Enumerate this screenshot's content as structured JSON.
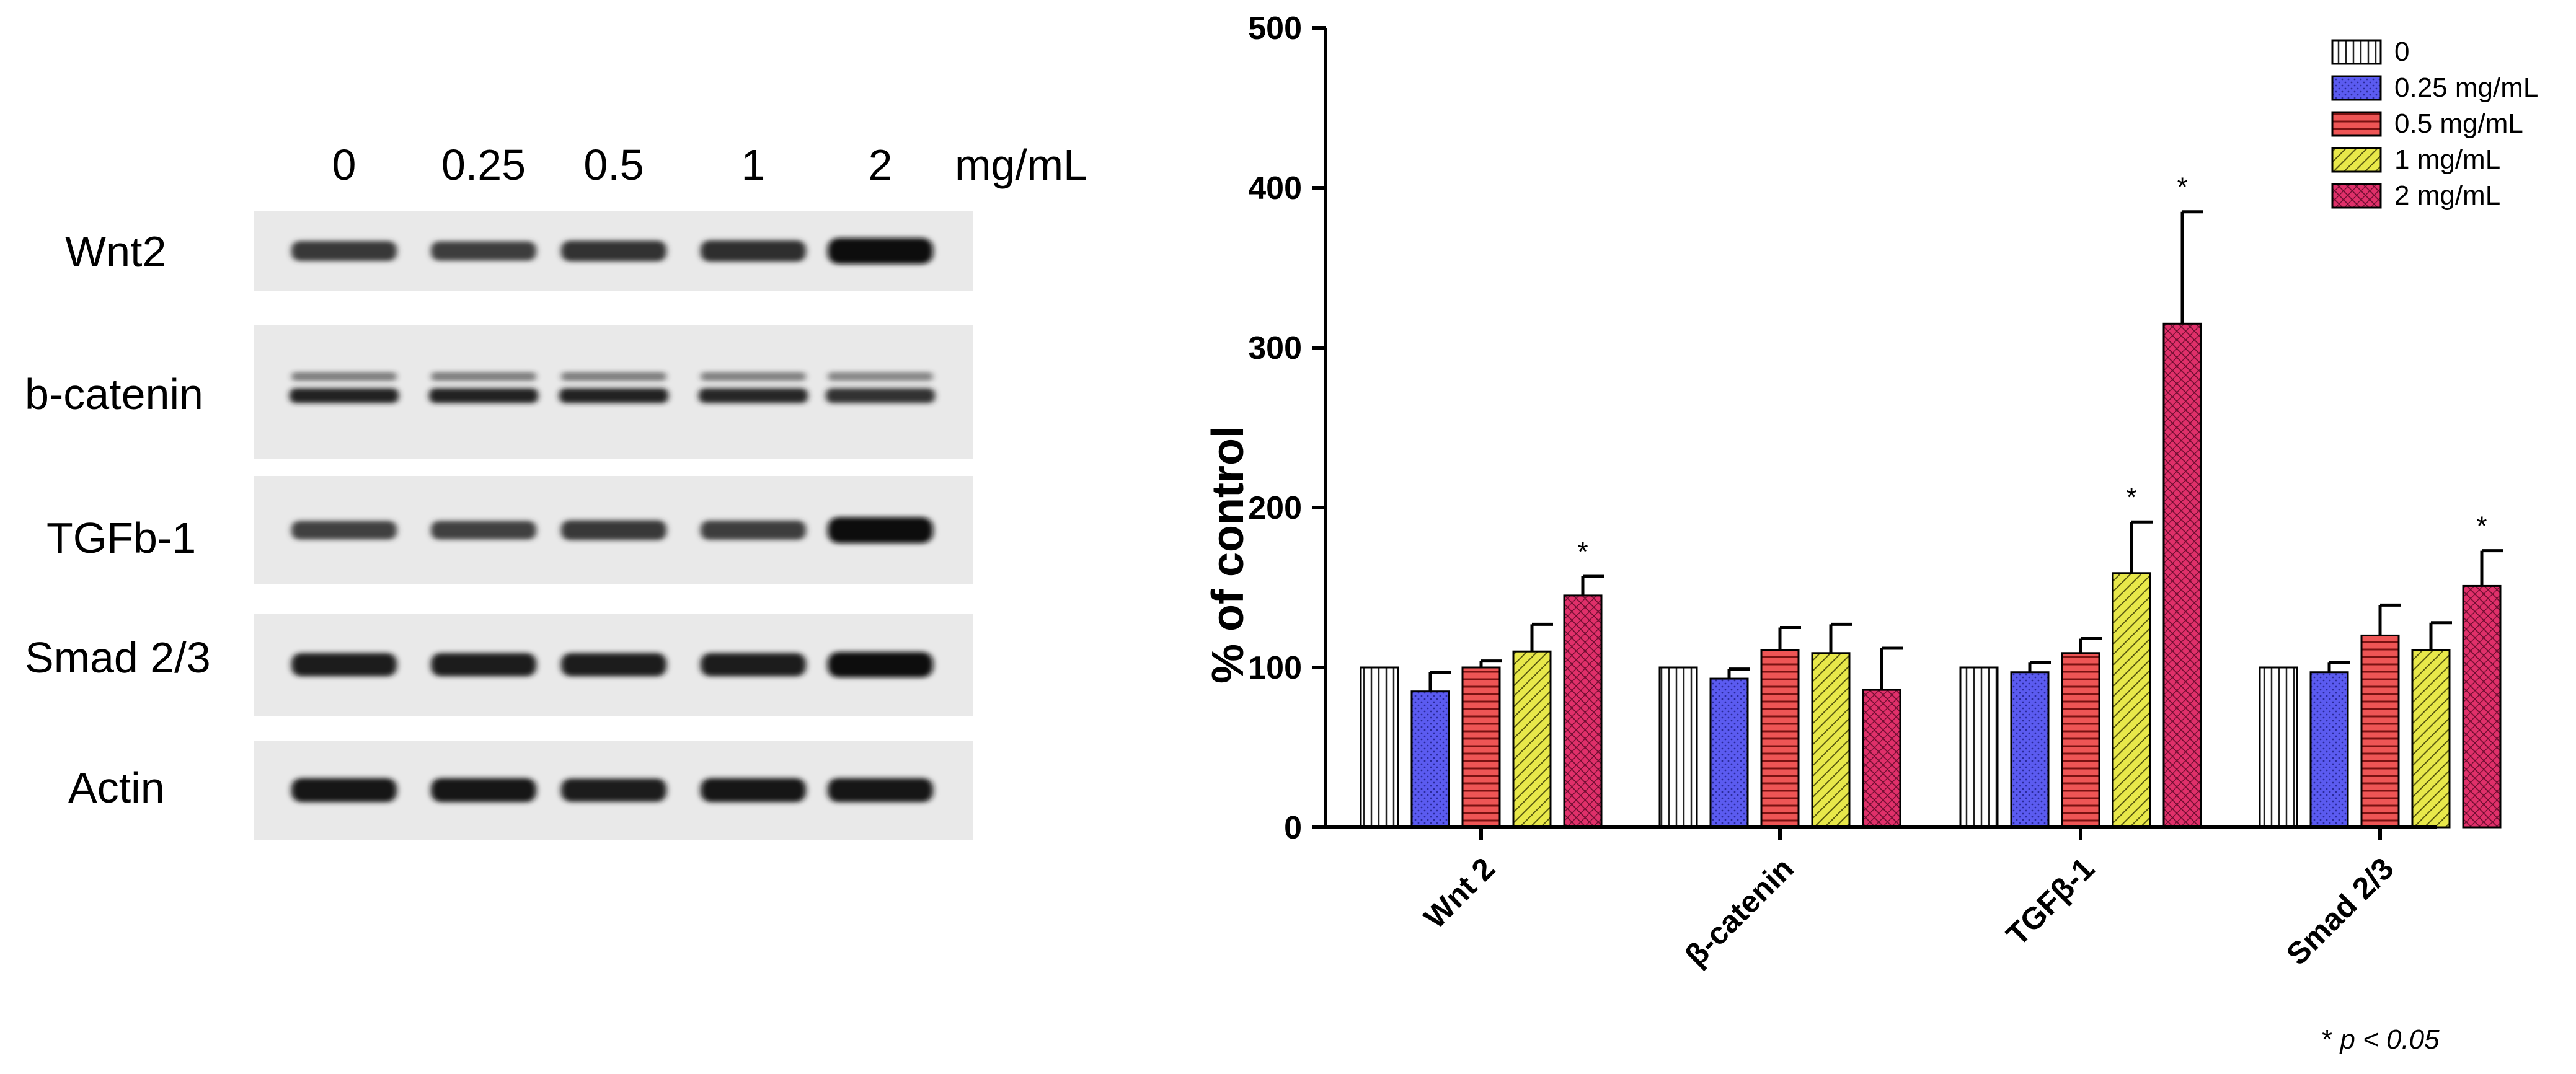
{
  "blot": {
    "concentrations": [
      "0",
      "0.25",
      "0.5",
      "1",
      "2"
    ],
    "unit": "mg/mL",
    "proteins": [
      {
        "name": "Wnt2",
        "intensity": [
          0.55,
          0.5,
          0.6,
          0.65,
          1.0
        ],
        "doublet": false
      },
      {
        "name": "b-catenin",
        "intensity": [
          0.75,
          0.75,
          0.75,
          0.7,
          0.6
        ],
        "doublet": true
      },
      {
        "name": "TGFb-1",
        "intensity": [
          0.45,
          0.45,
          0.55,
          0.5,
          1.0
        ],
        "doublet": false
      },
      {
        "name": "Smad 2/3",
        "intensity": [
          0.8,
          0.8,
          0.8,
          0.8,
          0.95
        ],
        "doublet": false
      },
      {
        "name": "Actin",
        "intensity": [
          0.85,
          0.85,
          0.8,
          0.85,
          0.85
        ],
        "doublet": false
      }
    ]
  },
  "chart_data": {
    "type": "bar",
    "ylabel": "% of control",
    "ylim": [
      0,
      500
    ],
    "yticks": [
      "0",
      "100",
      "200",
      "300",
      "400",
      "500"
    ],
    "categories": [
      "Wnt 2",
      "β-catenin",
      "TGFβ-1",
      "Smad 2/3"
    ],
    "series": [
      {
        "name": "0",
        "color": "#ffffff",
        "pattern": "vertical-lines",
        "values": [
          100,
          100,
          100,
          100
        ],
        "errors": [
          0,
          0,
          0,
          0
        ],
        "significant": [
          false,
          false,
          false,
          false
        ]
      },
      {
        "name": "0.25 mg/mL",
        "color": "#5b5bf0",
        "pattern": "dots",
        "values": [
          85,
          93,
          97,
          97
        ],
        "errors": [
          12,
          6,
          6,
          6
        ],
        "significant": [
          false,
          false,
          false,
          false
        ]
      },
      {
        "name": "0.5 mg/mL",
        "color": "#ee5555",
        "pattern": "horizontal-lines",
        "values": [
          100,
          111,
          109,
          120
        ],
        "errors": [
          4,
          14,
          9,
          19
        ],
        "significant": [
          false,
          false,
          false,
          false
        ]
      },
      {
        "name": "1 mg/mL",
        "color": "#e8e84a",
        "pattern": "diagonal-lines",
        "values": [
          110,
          109,
          159,
          111
        ],
        "errors": [
          17,
          18,
          32,
          17
        ],
        "significant": [
          false,
          false,
          true,
          false
        ]
      },
      {
        "name": "2 mg/mL",
        "color": "#e0306a",
        "pattern": "crosshatch",
        "values": [
          145,
          86,
          315,
          151
        ],
        "errors": [
          12,
          26,
          70,
          22
        ],
        "significant": [
          true,
          false,
          true,
          true
        ]
      }
    ],
    "significance_marker": "*",
    "footnote_prefix": "* ",
    "footnote_italic": "p < 0.05",
    "legend_position": "top-right",
    "grid": false
  }
}
